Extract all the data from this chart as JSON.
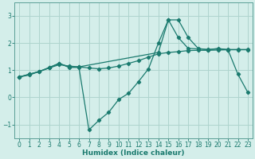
{
  "xlabel": "Humidex (Indice chaleur)",
  "bg_color": "#d4eeea",
  "grid_color": "#aed4ce",
  "line_color": "#1a7a6e",
  "xlim": [
    -0.5,
    23.5
  ],
  "ylim": [
    -1.5,
    3.5
  ],
  "xticks": [
    0,
    1,
    2,
    3,
    4,
    5,
    6,
    7,
    8,
    9,
    10,
    11,
    12,
    13,
    14,
    15,
    16,
    17,
    18,
    19,
    20,
    21,
    22,
    23
  ],
  "yticks": [
    -1,
    0,
    1,
    2,
    3
  ],
  "series1_x": [
    0,
    1,
    2,
    3,
    4,
    5,
    6,
    7,
    8,
    9,
    10,
    11,
    12,
    13,
    14,
    15,
    16,
    17,
    18,
    19,
    20,
    21,
    22,
    23
  ],
  "series1_y": [
    0.75,
    0.85,
    0.95,
    1.08,
    1.2,
    1.15,
    1.12,
    1.08,
    1.05,
    1.08,
    1.15,
    1.25,
    1.35,
    1.48,
    1.6,
    1.65,
    1.68,
    1.72,
    1.73,
    1.73,
    1.74,
    1.75,
    1.75,
    1.75
  ],
  "series2_x": [
    0,
    1,
    2,
    3,
    4,
    5,
    6,
    14,
    15,
    16,
    17,
    18,
    19,
    20,
    21,
    22,
    23
  ],
  "series2_y": [
    0.75,
    0.85,
    0.95,
    1.1,
    1.25,
    1.12,
    1.12,
    1.65,
    2.85,
    2.2,
    1.8,
    1.78,
    1.76,
    1.78,
    1.76,
    1.76,
    1.76
  ],
  "series3_x": [
    0,
    1,
    3,
    4,
    5,
    6,
    7,
    8,
    9,
    10,
    11,
    12,
    13,
    14,
    15,
    16,
    17,
    18,
    19,
    20,
    21,
    22,
    23
  ],
  "series3_y": [
    0.75,
    0.82,
    1.08,
    1.25,
    1.1,
    1.1,
    -1.2,
    -0.85,
    -0.55,
    -0.08,
    0.15,
    0.58,
    1.05,
    2.0,
    2.85,
    2.85,
    2.2,
    1.8,
    1.75,
    1.8,
    1.75,
    0.85,
    0.18
  ]
}
